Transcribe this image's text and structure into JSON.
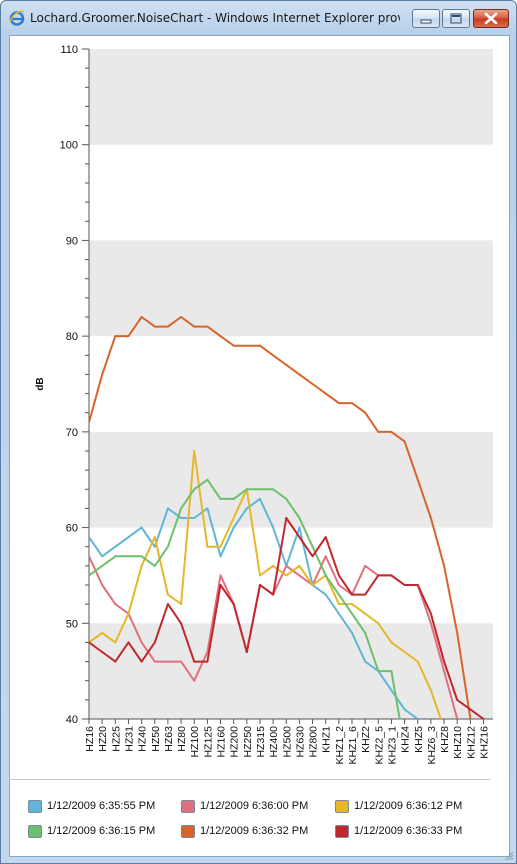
{
  "window": {
    "title": "Lochard.Groomer.NoiseChart - Windows Internet Explorer provided b...",
    "icon": "ie-icon",
    "controls": [
      "minimize-icon",
      "maximize-icon",
      "close-icon"
    ]
  },
  "chart_data": {
    "type": "line",
    "ylabel": "dB",
    "xlabel": "",
    "ylim": [
      40,
      110
    ],
    "yticks": [
      "40",
      "50",
      "60",
      "70",
      "80",
      "90",
      "100",
      "110"
    ],
    "grid": "alternating horizontal bands",
    "legend_position": "bottom",
    "categories": [
      "HZ16",
      "HZ20",
      "HZ25",
      "HZ31",
      "HZ40",
      "HZ50",
      "HZ63",
      "HZ80",
      "HZ100",
      "HZ125",
      "HZ160",
      "HZ200",
      "HZ250",
      "HZ315",
      "HZ400",
      "HZ500",
      "HZ630",
      "HZ800",
      "KHZ1",
      "KHZ1_2",
      "KHZ1_6",
      "KHZ2",
      "KHZ2_5",
      "KHZ3_1",
      "KHZ4",
      "KHZ5",
      "KHZ6_3",
      "KHZ8",
      "KHZ10",
      "KHZ12",
      "KHZ16"
    ],
    "series": [
      {
        "name": "1/12/2009 6:35:55 PM",
        "color": "#5fb6d6",
        "values": [
          59,
          57,
          58,
          59,
          60,
          58,
          62,
          61,
          61,
          62,
          57,
          60,
          62,
          63,
          60,
          56,
          60,
          54,
          53,
          51,
          49,
          46,
          45,
          43,
          41,
          40,
          null,
          null,
          null,
          null,
          null
        ]
      },
      {
        "name": "1/12/2009 6:36:00 PM",
        "color": "#e0707f",
        "values": [
          57,
          54,
          52,
          51,
          48,
          46,
          46,
          46,
          44,
          47,
          55,
          52,
          47,
          54,
          53,
          56,
          55,
          54,
          57,
          54,
          53,
          56,
          55,
          55,
          54,
          54,
          50,
          45,
          40,
          null,
          null
        ]
      },
      {
        "name": "1/12/2009 6:36:12 PM",
        "color": "#e8b62a",
        "values": [
          48,
          49,
          48,
          51,
          56,
          59,
          53,
          52,
          68,
          58,
          58,
          61,
          64,
          55,
          56,
          55,
          56,
          54,
          55,
          52,
          52,
          51,
          50,
          48,
          47,
          46,
          43,
          39,
          null,
          null,
          null
        ]
      },
      {
        "name": "1/12/2009 6:36:15 PM",
        "color": "#6cc06c",
        "values": [
          55,
          56,
          57,
          57,
          57,
          56,
          58,
          62,
          64,
          65,
          63,
          63,
          64,
          64,
          64,
          63,
          61,
          58,
          55,
          53,
          51,
          49,
          45,
          45,
          37,
          null,
          null,
          null,
          null,
          null,
          null
        ]
      },
      {
        "name": "1/12/2009 6:36:32 PM",
        "color": "#d8642a",
        "values": [
          71,
          76,
          80,
          80,
          82,
          81,
          81,
          82,
          81,
          81,
          80,
          79,
          79,
          79,
          78,
          77,
          76,
          75,
          74,
          73,
          73,
          72,
          70,
          70,
          69,
          65,
          61,
          56,
          49,
          40,
          null
        ]
      },
      {
        "name": "1/12/2009 6:36:33 PM",
        "color": "#c0282e",
        "values": [
          48,
          47,
          46,
          48,
          46,
          48,
          52,
          50,
          46,
          46,
          54,
          52,
          47,
          54,
          53,
          61,
          59,
          57,
          59,
          55,
          53,
          53,
          55,
          55,
          54,
          54,
          51,
          46,
          42,
          41,
          40
        ]
      }
    ]
  }
}
